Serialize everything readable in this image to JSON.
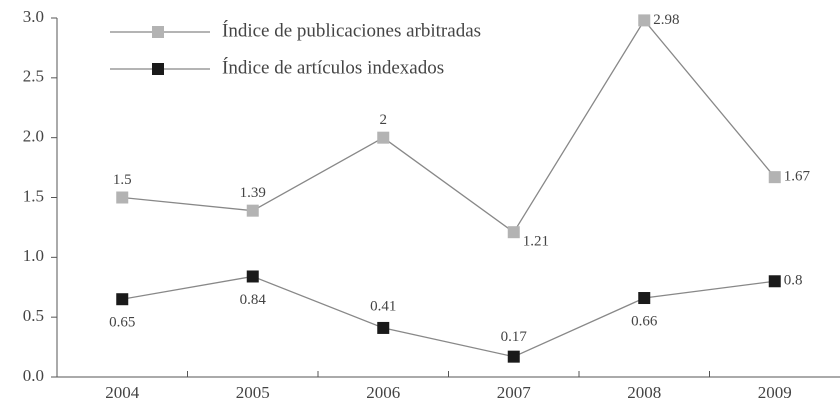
{
  "chart_data": {
    "type": "line",
    "categories": [
      "2004",
      "2005",
      "2006",
      "2007",
      "2008",
      "2009"
    ],
    "series": [
      {
        "name": "Índice de publicaciones arbitradas",
        "color": "#b3b3b3",
        "values": [
          1.5,
          1.39,
          2,
          1.21,
          2.98,
          1.67
        ]
      },
      {
        "name": "Índice de artículos indexados",
        "color": "#1a1a1a",
        "values": [
          0.65,
          0.84,
          0.41,
          0.17,
          0.66,
          0.8
        ]
      }
    ],
    "ylim": [
      0,
      3
    ],
    "yticks": [
      {
        "value": 0,
        "label": "0.0"
      },
      {
        "value": 0.5,
        "label": "0.5"
      },
      {
        "value": 1,
        "label": "1.0"
      },
      {
        "value": 1.5,
        "label": "1.5"
      },
      {
        "value": 2,
        "label": "2.0"
      },
      {
        "value": 2.5,
        "label": "2.5"
      },
      {
        "value": 3,
        "label": "3.0"
      }
    ],
    "grid": false
  }
}
